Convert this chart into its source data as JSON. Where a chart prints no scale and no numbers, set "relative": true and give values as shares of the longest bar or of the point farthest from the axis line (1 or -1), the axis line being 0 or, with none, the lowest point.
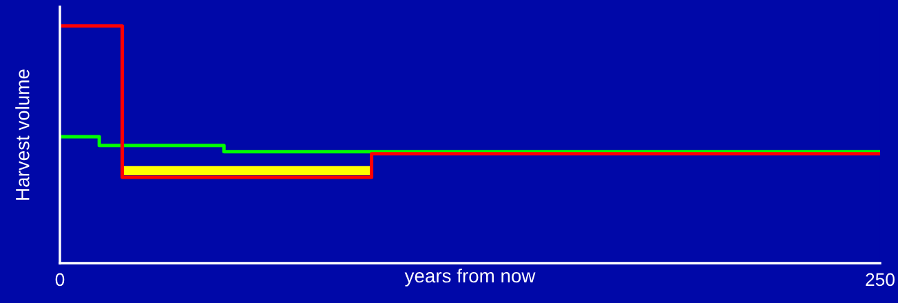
{
  "chart_data": {
    "type": "step",
    "relative": true,
    "xlabel": "years from now",
    "ylabel": "Harvest volume",
    "xlim": [
      0,
      250
    ],
    "xticks": [
      0,
      250
    ],
    "grid": false,
    "series": [
      {
        "type": "line",
        "x": [
          19,
          95
        ],
        "values": [
          0.39,
          0.39
        ],
        "color": "#ffff00"
      },
      {
        "x": [
          0,
          12,
          50,
          250
        ],
        "values": [
          0.533,
          0.496,
          0.47,
          0.47
        ],
        "color": "#00ff00"
      },
      {
        "x": [
          0,
          19,
          95,
          250
        ],
        "values": [
          1,
          0.362,
          0.461,
          0.461
        ],
        "color": "#ff0000"
      }
    ]
  }
}
